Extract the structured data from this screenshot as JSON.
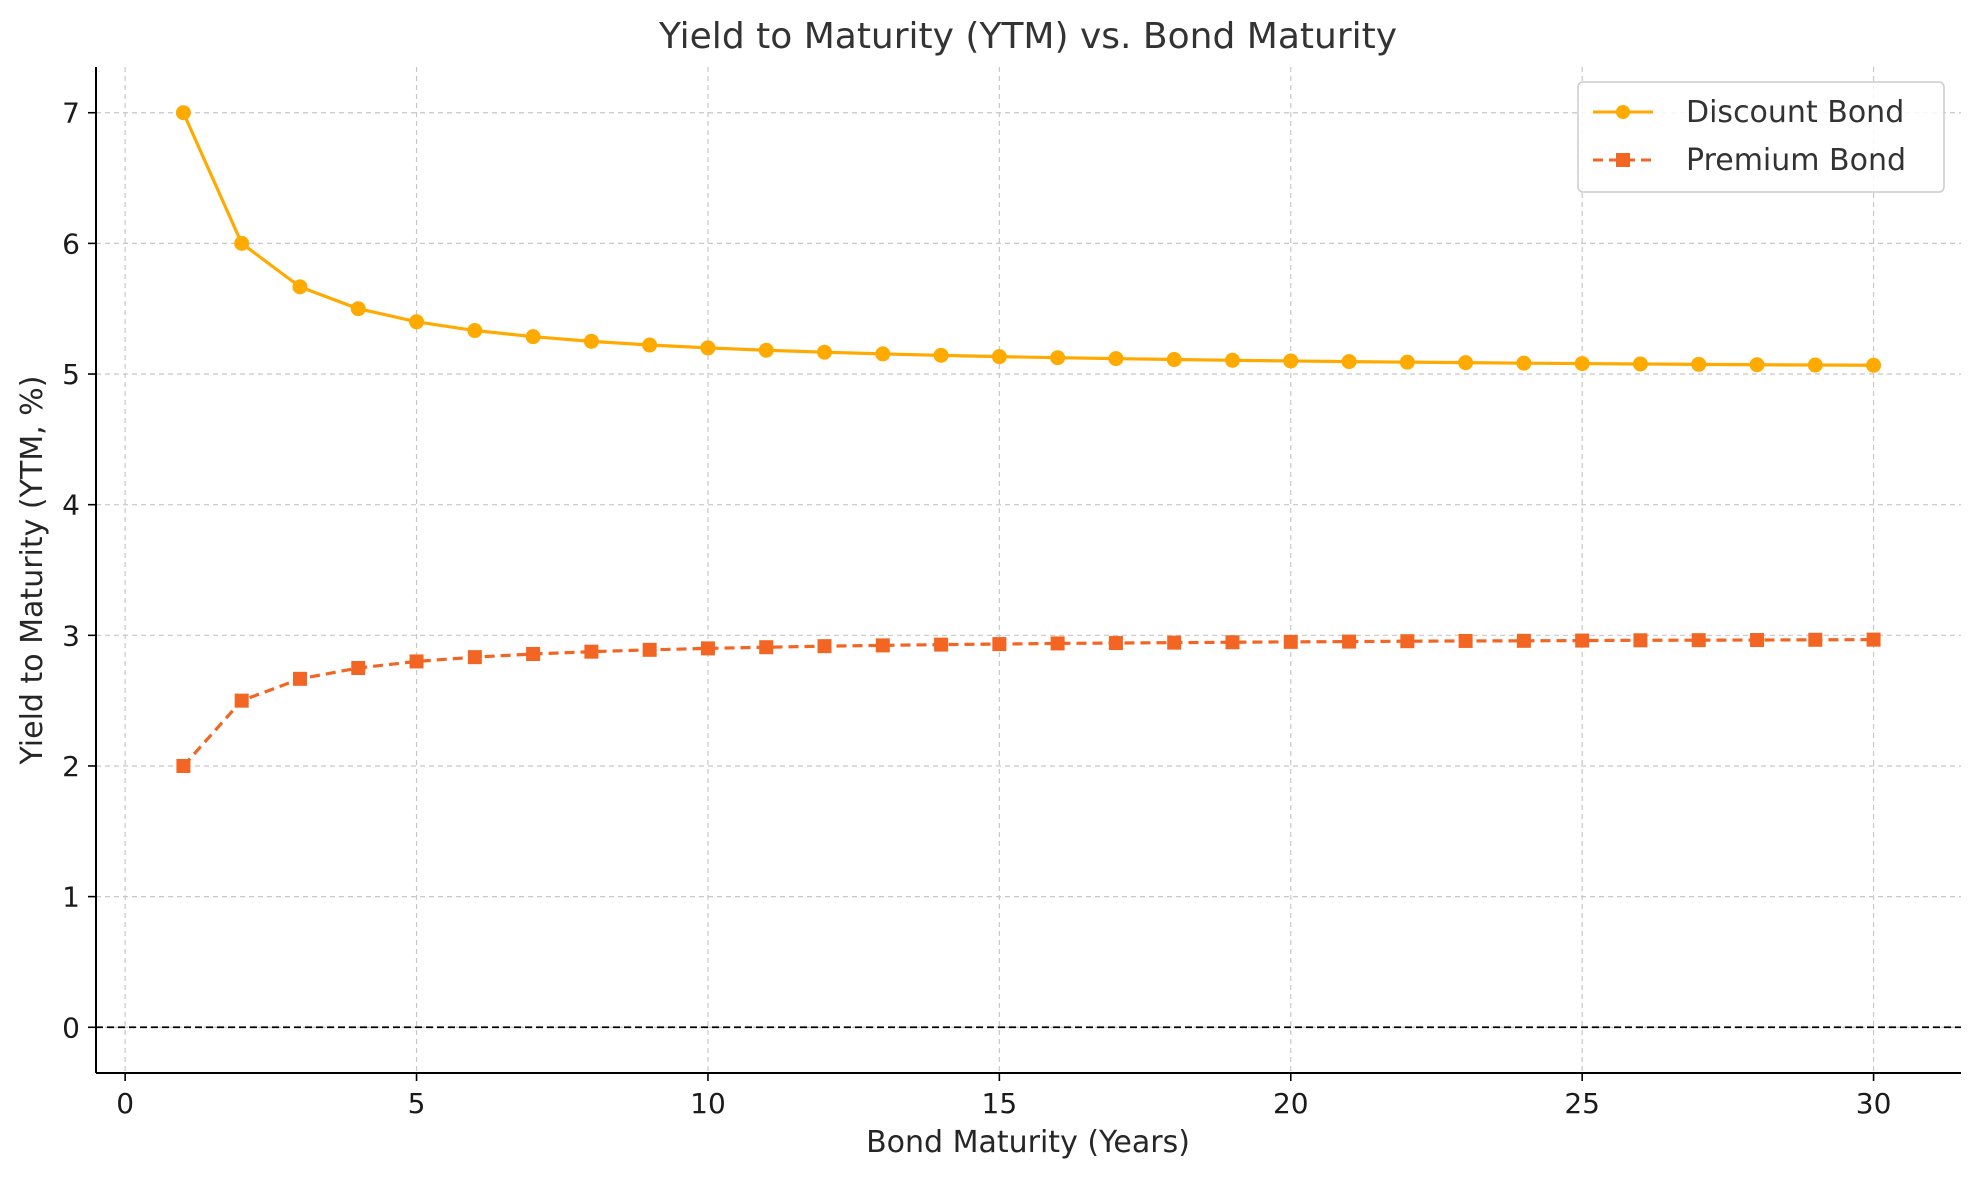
{
  "chart_data": {
    "type": "line",
    "title": "Yield to Maturity (YTM) vs. Bond Maturity",
    "xlabel": "Bond Maturity (Years)",
    "ylabel": "Yield to Maturity (YTM, %)",
    "xlim": [
      -0.5,
      31.5
    ],
    "ylim": [
      -0.35,
      7.35
    ],
    "xticks": [
      0,
      5,
      10,
      15,
      20,
      25,
      30
    ],
    "yticks": [
      0,
      1,
      2,
      3,
      4,
      5,
      6,
      7
    ],
    "grid": true,
    "legend_position": "top-right",
    "reference_line": {
      "y": 0,
      "style": "dashed",
      "color": "#000000"
    },
    "x": [
      1,
      2,
      3,
      4,
      5,
      6,
      7,
      8,
      9,
      10,
      11,
      12,
      13,
      14,
      15,
      16,
      17,
      18,
      19,
      20,
      21,
      22,
      23,
      24,
      25,
      26,
      27,
      28,
      29,
      30
    ],
    "series": [
      {
        "name": "Discount Bond",
        "color": "#ffaa00",
        "marker": "circle",
        "line_style": "solid",
        "values": [
          7.0,
          6.0,
          5.667,
          5.5,
          5.4,
          5.333,
          5.286,
          5.25,
          5.222,
          5.2,
          5.182,
          5.167,
          5.154,
          5.143,
          5.133,
          5.125,
          5.118,
          5.111,
          5.105,
          5.1,
          5.095,
          5.091,
          5.087,
          5.083,
          5.08,
          5.077,
          5.074,
          5.071,
          5.069,
          5.067
        ]
      },
      {
        "name": "Premium Bond",
        "color": "#f26522",
        "marker": "square",
        "line_style": "dashed",
        "values": [
          2.0,
          2.5,
          2.667,
          2.75,
          2.8,
          2.833,
          2.857,
          2.875,
          2.889,
          2.9,
          2.909,
          2.917,
          2.923,
          2.929,
          2.933,
          2.938,
          2.941,
          2.944,
          2.947,
          2.95,
          2.952,
          2.955,
          2.957,
          2.958,
          2.96,
          2.962,
          2.963,
          2.964,
          2.966,
          2.967
        ]
      }
    ]
  }
}
